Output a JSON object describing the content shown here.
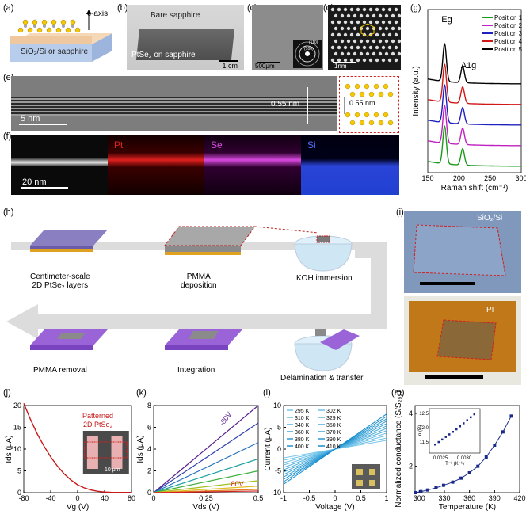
{
  "labels": {
    "a": "(a)",
    "b": "(b)",
    "c": "(c)",
    "d": "(d)",
    "e": "(e)",
    "f": "(f)",
    "g": "(g)",
    "h": "(h)",
    "i": "(i)",
    "j": "(j)",
    "k": "(k)",
    "l": "(l)",
    "m": "(m)"
  },
  "panel_a": {
    "axis": "c-axis",
    "substrate": "SiO₂/Si or sapphire"
  },
  "panel_b": {
    "top": "Bare sapphire",
    "bottom": "PtSe₂ on sapphire",
    "scale": "1 cm"
  },
  "panel_c": {
    "scale": "500μm",
    "inset": [
      "(110)",
      "(100)"
    ]
  },
  "panel_d": {
    "scale": "1nm"
  },
  "panel_e": {
    "scale": "5 nm",
    "spacing": "0.55 nm",
    "inset_spacing": "0.55 nm"
  },
  "panel_f": {
    "scale": "20 nm",
    "elements": [
      "Pt",
      "Se",
      "Si"
    ],
    "colors": {
      "Pt": "#e0201e",
      "Se": "#d94ae0",
      "Si": "#3a5bff"
    }
  },
  "panel_h": {
    "steps": [
      "Centimeter-scale\n2D PtSe₂ layers",
      "PMMA\ndeposition",
      "KOH immersion",
      "PMMA removal",
      "Integration",
      "Delamination & transfer"
    ]
  },
  "panel_i": {
    "top": "SiO₂/Si",
    "bottom": "PI"
  },
  "chart_data": [
    {
      "id": "g",
      "type": "line",
      "ylabel": "Intensity (a.u.)",
      "xlabel": "Raman shift (cm⁻¹)",
      "xlim": [
        150,
        300
      ],
      "xticks": [
        150,
        200,
        250,
        300
      ],
      "peaks": [
        "Eg",
        "A1g"
      ],
      "series": [
        {
          "name": "Position 1",
          "color": "#1a9a1a"
        },
        {
          "name": "Position 2",
          "color": "#c020c0"
        },
        {
          "name": "Position 3",
          "color": "#2020c0"
        },
        {
          "name": "Position 4",
          "color": "#d01818"
        },
        {
          "name": "Position 5",
          "color": "#000000"
        }
      ]
    },
    {
      "id": "j",
      "type": "line",
      "ylabel": "Ids (μA)",
      "xlabel": "Vg (V)",
      "xlim": [
        -80,
        80
      ],
      "ylim": [
        0,
        20
      ],
      "xticks": [
        -80,
        -40,
        0,
        40,
        80
      ],
      "yticks": [
        0,
        5,
        10,
        15,
        20
      ],
      "legend": "Patterned\n2D PtSe₂",
      "inset_scale": "10 μm",
      "x": [
        -80,
        -70,
        -60,
        -50,
        -40,
        -30,
        -20,
        -10,
        0,
        10,
        20,
        30,
        40,
        50,
        60,
        70,
        80
      ],
      "y": [
        20.5,
        16.8,
        13.5,
        10.7,
        8.2,
        6.1,
        4.3,
        2.9,
        1.8,
        1.1,
        0.6,
        0.3,
        0.15,
        0.08,
        0.05,
        0.05,
        0.05
      ]
    },
    {
      "id": "k",
      "type": "line",
      "ylabel": "Ids (μA)",
      "xlabel": "Vds (V)",
      "xlim": [
        0,
        0.5
      ],
      "ylim": [
        0,
        8
      ],
      "xticks": [
        0,
        0.25,
        0.5
      ],
      "yticks": [
        0,
        2,
        4,
        6,
        8
      ],
      "annotations": [
        "-80V",
        "80V"
      ],
      "series": [
        {
          "color": "#5a2090",
          "end": 8.2
        },
        {
          "color": "#3040b0",
          "end": 6.4
        },
        {
          "color": "#2070c0",
          "end": 4.6
        },
        {
          "color": "#20a0a0",
          "end": 3.1
        },
        {
          "color": "#40b040",
          "end": 2.0
        },
        {
          "color": "#a0c020",
          "end": 1.1
        },
        {
          "color": "#e0c020",
          "end": 0.6
        },
        {
          "color": "#e08020",
          "end": 0.3
        },
        {
          "color": "#d02020",
          "end": 0.15
        }
      ]
    },
    {
      "id": "l",
      "type": "line",
      "ylabel": "Current (μA)",
      "xlabel": "Voltage (V)",
      "xlim": [
        -1,
        1
      ],
      "ylim": [
        -10,
        10
      ],
      "xticks": [
        -1,
        -0.5,
        0,
        0.5,
        1
      ],
      "yticks": [
        -10,
        -5,
        0,
        5,
        10
      ],
      "legend": [
        "295 K",
        "302 K",
        "310 K",
        "329 K",
        "340 K",
        "350 K",
        "360 K",
        "370 K",
        "380 K",
        "390 K",
        "400 K",
        "410 K"
      ]
    },
    {
      "id": "m",
      "type": "scatter",
      "ylabel": "Normalized conductance (S/S₂₉₅)",
      "xlabel": "Temperature (K)",
      "xlim": [
        295,
        420
      ],
      "ylim": [
        1,
        4.3
      ],
      "xticks": [
        300,
        330,
        360,
        390,
        420
      ],
      "yticks": [
        2,
        4
      ],
      "x": [
        295,
        302,
        310,
        320,
        329,
        340,
        350,
        360,
        370,
        380,
        390,
        400,
        410
      ],
      "y": [
        1.0,
        1.04,
        1.1,
        1.18,
        1.28,
        1.4,
        1.55,
        1.75,
        2.0,
        2.35,
        2.8,
        3.3,
        3.9
      ],
      "inset": {
        "xlabel": "T⁻¹ (K⁻¹)",
        "ylabel": "ln (R)",
        "xticks": [
          "0.0025",
          "0.0030"
        ],
        "yticks": [
          "12.5",
          "12.0",
          "11.5"
        ]
      }
    }
  ]
}
